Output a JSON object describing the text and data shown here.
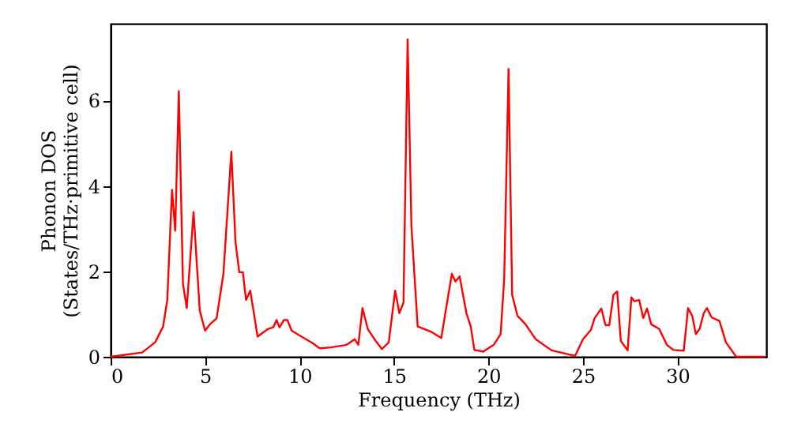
{
  "chart_data": {
    "type": "line",
    "xlabel": "Frequency (THz)",
    "ylabel": "Phonon DOS\n(States/THz·primitive cell)",
    "xlim": [
      0,
      34.7
    ],
    "ylim": [
      0,
      7.8
    ],
    "xticks": [
      0,
      5,
      10,
      15,
      20,
      25,
      30
    ],
    "yticks": [
      0,
      2,
      4,
      6
    ],
    "grid": false,
    "marker": "none",
    "line_style": "solid",
    "series": [
      {
        "color": "#ff0000",
        "x": [
          0,
          1.67,
          2.36,
          2.78,
          3.0,
          3.25,
          3.42,
          3.61,
          3.83,
          4.03,
          4.39,
          4.72,
          5.0,
          5.28,
          5.61,
          5.97,
          6.39,
          6.61,
          6.81,
          7.0,
          7.17,
          7.39,
          7.78,
          8.33,
          8.61,
          8.78,
          8.94,
          9.17,
          9.36,
          9.58,
          10.69,
          11.06,
          11.67,
          12.5,
          12.92,
          13.11,
          13.33,
          13.61,
          14.03,
          14.36,
          14.72,
          15.06,
          15.28,
          15.5,
          15.72,
          15.92,
          16.25,
          16.94,
          17.5,
          17.78,
          18.06,
          18.25,
          18.47,
          18.83,
          19.06,
          19.25,
          19.72,
          20.28,
          20.64,
          20.83,
          21.06,
          21.25,
          21.53,
          21.94,
          22.5,
          23.33,
          24.58,
          25.0,
          25.42,
          25.61,
          25.97,
          26.19,
          26.39,
          26.61,
          26.81,
          27.0,
          27.36,
          27.56,
          27.72,
          27.97,
          28.19,
          28.39,
          28.61,
          29.03,
          29.44,
          29.78,
          30.33,
          30.56,
          30.78,
          30.97,
          31.17,
          31.39,
          31.56,
          31.81,
          32.22,
          32.56,
          33.11,
          34.61
        ],
        "values": [
          0,
          0.1,
          0.34,
          0.71,
          1.33,
          3.91,
          2.95,
          6.22,
          1.7,
          1.14,
          3.39,
          1.08,
          0.61,
          0.77,
          0.9,
          1.94,
          4.8,
          2.68,
          1.98,
          1.98,
          1.33,
          1.55,
          0.47,
          0.65,
          0.69,
          0.86,
          0.69,
          0.86,
          0.86,
          0.61,
          0.32,
          0.2,
          0.22,
          0.28,
          0.41,
          0.28,
          1.14,
          0.65,
          0.37,
          0.18,
          0.34,
          1.55,
          1.02,
          1.27,
          7.43,
          3.05,
          0.71,
          0.59,
          0.44,
          1.2,
          1.94,
          1.76,
          1.88,
          1.02,
          0.71,
          0.16,
          0.12,
          0.28,
          0.53,
          1.82,
          6.74,
          1.45,
          0.96,
          0.77,
          0.41,
          0.15,
          0.02,
          0.41,
          0.63,
          0.9,
          1.13,
          0.74,
          0.74,
          1.45,
          1.53,
          0.37,
          0.15,
          1.39,
          1.3,
          1.33,
          0.91,
          1.13,
          0.76,
          0.65,
          0.28,
          0.16,
          0.14,
          1.14,
          0.96,
          0.53,
          0.65,
          1.02,
          1.14,
          0.92,
          0.84,
          0.34,
          0,
          0
        ]
      }
    ]
  }
}
